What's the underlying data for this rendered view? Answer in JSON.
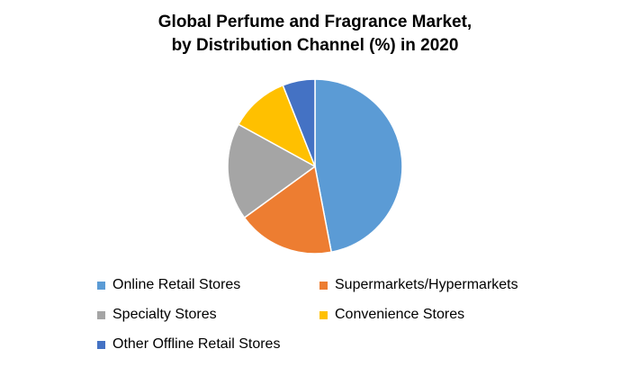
{
  "chart_data": {
    "type": "pie",
    "title_line1": "Global Perfume and Fragrance Market,",
    "title_line2": "by Distribution Channel (%) in 2020",
    "categories": [
      "Online Retail Stores",
      "Supermarkets/Hypermarkets",
      "Specialty Stores",
      "Convenience Stores",
      "Other Offline Retail Stores"
    ],
    "values": [
      47,
      18,
      18,
      11,
      6
    ],
    "colors": [
      "#5B9BD5",
      "#ED7D31",
      "#A5A5A5",
      "#FFC000",
      "#4472C4"
    ],
    "legend_position": "bottom"
  }
}
